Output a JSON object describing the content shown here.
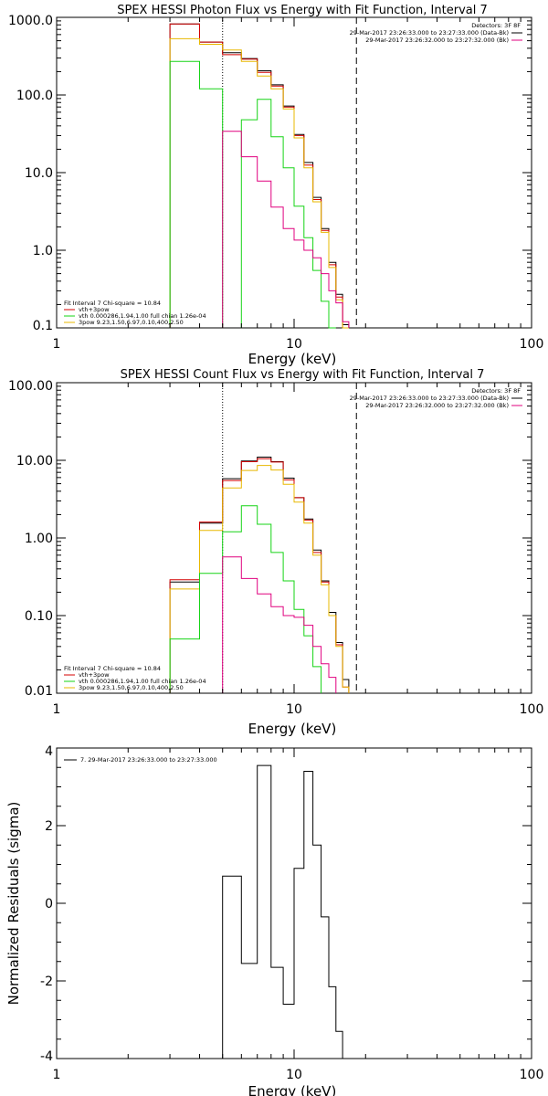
{
  "chart_data": [
    {
      "type": "line",
      "title": "SPEX HESSI Photon Flux vs Energy with Fit Function, Interval 7",
      "xlabel": "Energy (keV)",
      "ylabel": "",
      "xscale": "log",
      "yscale": "log",
      "xlim": [
        1,
        100
      ],
      "ylim": [
        0.1,
        1000
      ],
      "xticks": [
        "1",
        "10",
        "100"
      ],
      "yticks": [
        "1000.0",
        "100.0",
        "10.0",
        "1.0",
        "0.1"
      ],
      "vlines": [
        {
          "x": 5.0,
          "style": "dotted"
        },
        {
          "x": 18.3,
          "style": "dashed"
        }
      ],
      "corner": {
        "detectors": "Detectors: 3F 8F",
        "line1": "29-Mar-2017 23:26:33.000 to 23:27:33.000 (Data-Bk)",
        "line2": "29-Mar-2017 23:26:32.000 to 23:27:32.000 (Bk)",
        "colors": [
          "#000000",
          "#e0007f"
        ]
      },
      "legend": {
        "header": "Fit Interval 7   Chi-square = 10.84",
        "position": "bottom-left",
        "items": [
          {
            "label": "vth+3pow",
            "color": "#d40000"
          },
          {
            "label": "vth 0.000286,1.94,1.00  full chian 1.26e-04",
            "color": "#16d416"
          },
          {
            "label": "3pow 9.23,1.50,6.97,0.10,400,2.50",
            "color": "#e8b800"
          }
        ]
      },
      "edges": [
        3.0,
        4.0,
        5.0,
        6.0,
        7.0,
        8.0,
        9.0,
        10.0,
        11.0,
        12.0,
        13.0,
        14.0,
        15.0,
        16.0,
        17.0,
        18.0,
        19.0,
        20.0
      ],
      "series": [
        {
          "color": "#000000",
          "values": [
            820,
            480,
            350,
            295,
            205,
            135,
            72,
            31,
            13.5,
            4.8,
            1.9,
            0.7,
            0.27,
            0.11
          ]
        },
        {
          "color": "#d40000",
          "values": [
            820,
            480,
            330,
            290,
            195,
            130,
            70,
            30,
            12.5,
            4.5,
            1.8,
            0.65,
            0.25,
            0.1
          ]
        },
        {
          "color": "#e8b800",
          "values": [
            530,
            450,
            380,
            270,
            175,
            120,
            66,
            28,
            11.5,
            4.2,
            1.7,
            0.6,
            0.23,
            0.09
          ]
        },
        {
          "color": "#16d416",
          "values": [
            270,
            120,
            null,
            48,
            88,
            29,
            11.5,
            3.7,
            1.45,
            0.55,
            0.22,
            0.1
          ]
        },
        {
          "color": "#e0007f",
          "values": [
            null,
            null,
            34,
            16,
            7.8,
            3.6,
            1.9,
            1.35,
            1.0,
            0.8,
            0.5,
            0.3,
            0.21,
            0.12
          ]
        }
      ]
    },
    {
      "type": "line",
      "title": "SPEX HESSI Count Flux vs Energy with Fit Function, Interval 7",
      "xlabel": "Energy (keV)",
      "ylabel": "",
      "xscale": "log",
      "yscale": "log",
      "xlim": [
        1,
        100
      ],
      "ylim": [
        0.01,
        100
      ],
      "xticks": [
        "1",
        "10",
        "100"
      ],
      "yticks": [
        "100.00",
        "10.00",
        "1.00",
        "0.10",
        "0.01"
      ],
      "vlines": [
        {
          "x": 5.0,
          "style": "dotted"
        },
        {
          "x": 18.3,
          "style": "dashed"
        }
      ],
      "corner": {
        "detectors": "Detectors: 3F 8F",
        "line1": "29-Mar-2017 23:26:33.000 to 23:27:33.000 (Data-Bk)",
        "line2": "29-Mar-2017 23:26:32.000 to 23:27:32.000 (Bk)",
        "colors": [
          "#000000",
          "#e0007f"
        ]
      },
      "legend": {
        "header": "Fit Interval 7   Chi-square = 10.84",
        "position": "bottom-left",
        "items": [
          {
            "label": "vth+3pow",
            "color": "#d40000"
          },
          {
            "label": "vth 0.000286,1.94,1.00  full chian 1.26e-04",
            "color": "#16d416"
          },
          {
            "label": "3pow 9.23,1.50,6.97,0.10,400,2.50",
            "color": "#e8b800"
          }
        ]
      },
      "edges": [
        3.0,
        4.0,
        5.0,
        6.0,
        7.0,
        8.0,
        9.0,
        10.0,
        11.0,
        12.0,
        13.0,
        14.0,
        15.0,
        16.0,
        17.0,
        18.0,
        19.0,
        20.0
      ],
      "series": [
        {
          "color": "#000000",
          "values": [
            0.27,
            1.55,
            5.8,
            9.8,
            11.0,
            9.6,
            5.9,
            3.3,
            1.75,
            0.7,
            0.28,
            0.11,
            0.045,
            0.015
          ]
        },
        {
          "color": "#d40000",
          "values": [
            0.29,
            1.6,
            5.5,
            9.6,
            10.5,
            9.5,
            5.6,
            3.3,
            1.7,
            0.65,
            0.27,
            0.1,
            0.042,
            0.012
          ]
        },
        {
          "color": "#e8b800",
          "values": [
            0.22,
            1.25,
            4.4,
            7.4,
            8.6,
            7.5,
            4.9,
            2.9,
            1.55,
            0.6,
            0.25,
            0.1,
            0.04,
            0.012
          ]
        },
        {
          "color": "#16d416",
          "values": [
            0.05,
            0.35,
            1.2,
            2.6,
            1.5,
            0.65,
            0.28,
            0.12,
            0.055,
            0.022
          ]
        },
        {
          "color": "#e0007f",
          "values": [
            null,
            null,
            0.57,
            0.3,
            0.19,
            0.13,
            0.1,
            0.095,
            0.075,
            0.04,
            0.024,
            0.016
          ]
        }
      ]
    },
    {
      "type": "line",
      "title": "",
      "xlabel": "Energy (keV)",
      "ylabel": "Normalized Residuals (sigma)",
      "xscale": "log",
      "yscale": "linear",
      "xlim": [
        1,
        100
      ],
      "ylim": [
        -4,
        4
      ],
      "xticks": [
        "1",
        "10",
        "100"
      ],
      "yticks": [
        "4",
        "2",
        "0",
        "-2",
        "-4"
      ],
      "legend": {
        "position": "top-left",
        "items": [
          {
            "label": "7. 29-Mar-2017 23:26:33.000 to 23:27:33.000",
            "color": "#000000"
          }
        ]
      },
      "edges": [
        5.0,
        6.0,
        7.0,
        8.0,
        9.0,
        10.0,
        11.0,
        12.0,
        13.0,
        14.0,
        15.0,
        16.0,
        17.0,
        18.0
      ],
      "series": [
        {
          "color": "#000000",
          "values": [
            0.7,
            -1.55,
            3.55,
            -1.65,
            -2.6,
            0.9,
            3.4,
            1.5,
            -0.35,
            -2.15,
            -3.3,
            -4.0,
            -4.0
          ]
        }
      ]
    }
  ]
}
